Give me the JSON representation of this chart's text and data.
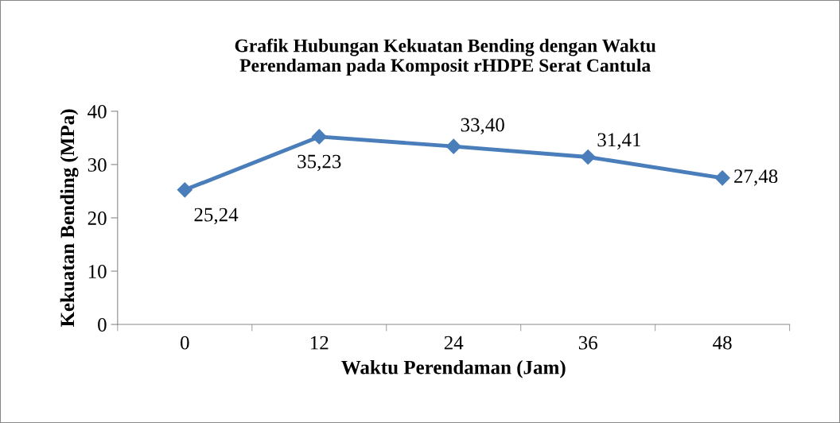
{
  "chart_data": {
    "type": "line",
    "title": "Grafik Hubungan Kekuatan Bending dengan Waktu\nPerendaman pada Komposit rHDPE Serat Cantula",
    "xlabel": "Waktu Perendaman (Jam)",
    "ylabel": "Kekuatan Bending (MPa)",
    "categories": [
      "0",
      "12",
      "24",
      "36",
      "48"
    ],
    "series": [
      {
        "color": "#4a7ebb",
        "values": [
          25.24,
          35.23,
          33.4,
          31.41,
          27.48
        ],
        "value_labels": [
          "25,24",
          "35,23",
          "33,40",
          "31,41",
          "27,48"
        ]
      }
    ],
    "ylim": [
      0,
      40
    ],
    "yticks": [
      0,
      10,
      20,
      30,
      40
    ],
    "grid": false,
    "legend": false,
    "marker": "diamond",
    "line_style": "solid"
  }
}
